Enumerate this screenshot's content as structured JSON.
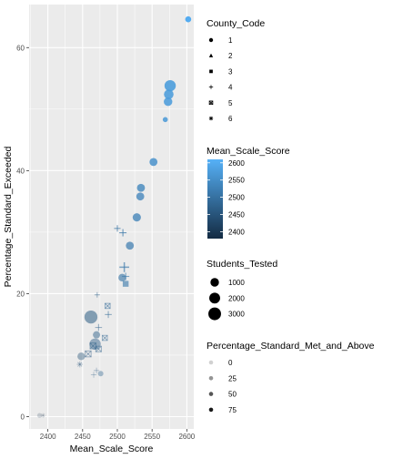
{
  "chart_data": {
    "type": "scatter",
    "xlabel": "Mean_Scale_Score",
    "ylabel": "Percentage_Standard_Exceeded",
    "xlim": [
      2373,
      2610
    ],
    "ylim": [
      -2,
      67
    ],
    "x_ticks": [
      2400,
      2450,
      2500,
      2550,
      2600
    ],
    "y_ticks": [
      0,
      20,
      40,
      60
    ],
    "grid": true,
    "legend_placement": "right",
    "color_scale": {
      "low": "#132B43",
      "high": "#56B1F7",
      "range": [
        2380,
        2610
      ]
    },
    "points": [
      {
        "x": 2388,
        "y": 0.2,
        "shape": 1,
        "students": 100,
        "met": 1
      },
      {
        "x": 2393,
        "y": 0.2,
        "shape": 6,
        "students": 100,
        "met": 2
      },
      {
        "x": 2446,
        "y": 8.5,
        "shape": 6,
        "students": 300,
        "met": 18
      },
      {
        "x": 2448,
        "y": 9.8,
        "shape": 1,
        "students": 700,
        "met": 25
      },
      {
        "x": 2458,
        "y": 10.2,
        "shape": 5,
        "students": 500,
        "met": 24
      },
      {
        "x": 2466,
        "y": 6.8,
        "shape": 4,
        "students": 250,
        "met": 18
      },
      {
        "x": 2470,
        "y": 7.5,
        "shape": 4,
        "students": 250,
        "met": 20
      },
      {
        "x": 2476,
        "y": 7.0,
        "shape": 1,
        "students": 200,
        "met": 22
      },
      {
        "x": 2465,
        "y": 11.5,
        "shape": 5,
        "students": 500,
        "met": 27
      },
      {
        "x": 2468,
        "y": 11.8,
        "shape": 1,
        "students": 2200,
        "met": 30
      },
      {
        "x": 2473,
        "y": 11.0,
        "shape": 5,
        "students": 400,
        "met": 28
      },
      {
        "x": 2470,
        "y": 13.3,
        "shape": 1,
        "students": 600,
        "met": 32
      },
      {
        "x": 2473,
        "y": 14.5,
        "shape": 4,
        "students": 500,
        "met": 30
      },
      {
        "x": 2482,
        "y": 12.8,
        "shape": 5,
        "students": 300,
        "met": 31
      },
      {
        "x": 2462,
        "y": 16.2,
        "shape": 1,
        "students": 3200,
        "met": 38
      },
      {
        "x": 2487,
        "y": 16.6,
        "shape": 4,
        "students": 500,
        "met": 36
      },
      {
        "x": 2486,
        "y": 18.0,
        "shape": 5,
        "students": 300,
        "met": 36
      },
      {
        "x": 2471,
        "y": 19.8,
        "shape": 4,
        "students": 200,
        "met": 40
      },
      {
        "x": 2507,
        "y": 22.6,
        "shape": 1,
        "students": 700,
        "met": 45
      },
      {
        "x": 2512,
        "y": 21.6,
        "shape": 3,
        "students": 500,
        "met": 45
      },
      {
        "x": 2510,
        "y": 24.3,
        "shape": 4,
        "students": 1500,
        "met": 48
      },
      {
        "x": 2512,
        "y": 22.8,
        "shape": 4,
        "students": 600,
        "met": 46
      },
      {
        "x": 2508,
        "y": 29.9,
        "shape": 4,
        "students": 600,
        "met": 55
      },
      {
        "x": 2500,
        "y": 30.6,
        "shape": 4,
        "students": 400,
        "met": 56
      },
      {
        "x": 2518,
        "y": 27.8,
        "shape": 1,
        "students": 800,
        "met": 55
      },
      {
        "x": 2528,
        "y": 32.4,
        "shape": 1,
        "students": 900,
        "met": 60
      },
      {
        "x": 2533,
        "y": 35.8,
        "shape": 1,
        "students": 800,
        "met": 62
      },
      {
        "x": 2534,
        "y": 37.2,
        "shape": 1,
        "students": 800,
        "met": 63
      },
      {
        "x": 2552,
        "y": 41.4,
        "shape": 1,
        "students": 800,
        "met": 67
      },
      {
        "x": 2569,
        "y": 48.3,
        "shape": 1,
        "students": 150,
        "met": 70
      },
      {
        "x": 2573,
        "y": 51.2,
        "shape": 1,
        "students": 1000,
        "met": 72
      },
      {
        "x": 2574,
        "y": 52.4,
        "shape": 1,
        "students": 1400,
        "met": 73
      },
      {
        "x": 2576,
        "y": 53.8,
        "shape": 1,
        "students": 2200,
        "met": 75
      },
      {
        "x": 2602,
        "y": 64.6,
        "shape": 1,
        "students": 300,
        "met": 85
      }
    ],
    "legends": {
      "shape": {
        "title": "County_Code",
        "labels": [
          "1",
          "2",
          "3",
          "4",
          "5",
          "6"
        ]
      },
      "color": {
        "title": "Mean_Scale_Score",
        "labels": [
          "2600",
          "2550",
          "2500",
          "2450",
          "2400"
        ],
        "values": [
          2600,
          2550,
          2500,
          2450,
          2400
        ]
      },
      "size": {
        "title": "Students_Tested",
        "labels": [
          "1000",
          "2000",
          "3000"
        ],
        "values": [
          1000,
          2000,
          3000
        ]
      },
      "alpha": {
        "title": "Percentage_Standard_Met_and_Above",
        "labels": [
          "0",
          "25",
          "50",
          "75"
        ],
        "values": [
          0,
          25,
          50,
          75
        ]
      }
    }
  }
}
